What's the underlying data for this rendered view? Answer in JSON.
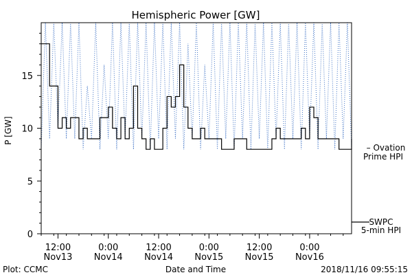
{
  "chart_data": {
    "type": "line",
    "title": "Hemispheric Power [GW]",
    "ylabel": "P [GW]",
    "xlabel": "Date and Time",
    "ylim": [
      0,
      20
    ],
    "yticks": [
      0,
      5,
      10,
      15
    ],
    "xticks": [
      {
        "time": "2018-11-13 12:00",
        "label1": "12:00",
        "label2": "Nov13"
      },
      {
        "time": "2018-11-14 00:00",
        "label1": "0:00",
        "label2": "Nov14"
      },
      {
        "time": "2018-11-14 12:00",
        "label1": "12:00",
        "label2": "Nov14"
      },
      {
        "time": "2018-11-15 00:00",
        "label1": "0:00",
        "label2": "Nov15"
      },
      {
        "time": "2018-11-15 12:00",
        "label1": "12:00",
        "label2": "Nov15"
      },
      {
        "time": "2018-11-16 00:00",
        "label1": "0:00",
        "label2": "Nov16"
      }
    ],
    "xlim": [
      "2018-11-13 08:00",
      "2018-11-16 10:00"
    ],
    "footer_left": "Plot: CCMC",
    "footer_right": "2018/11/16 09:55:15",
    "colors": {
      "swpc": "#000000",
      "ovation": "#3a6fc4"
    },
    "series": [
      {
        "name": "SWPC 5-min HPI",
        "legend_line1": "SWPC",
        "legend_line2": "5-min HPI",
        "style": "solid",
        "x": [
          "2018-11-13 08:00",
          "2018-11-13 10:00",
          "2018-11-13 12:00",
          "2018-11-13 13:00",
          "2018-11-13 14:00",
          "2018-11-13 15:00",
          "2018-11-13 17:00",
          "2018-11-13 18:00",
          "2018-11-13 19:00",
          "2018-11-13 20:00",
          "2018-11-13 22:00",
          "2018-11-14 00:00",
          "2018-11-14 01:00",
          "2018-11-14 02:00",
          "2018-11-14 03:00",
          "2018-11-14 04:00",
          "2018-11-14 05:00",
          "2018-11-14 06:00",
          "2018-11-14 07:00",
          "2018-11-14 08:00",
          "2018-11-14 09:00",
          "2018-11-14 10:00",
          "2018-11-14 11:00",
          "2018-11-14 12:00",
          "2018-11-14 13:00",
          "2018-11-14 14:00",
          "2018-11-14 15:00",
          "2018-11-14 16:00",
          "2018-11-14 17:00",
          "2018-11-14 18:00",
          "2018-11-14 19:00",
          "2018-11-14 20:00",
          "2018-11-14 21:00",
          "2018-11-14 22:00",
          "2018-11-14 23:00",
          "2018-11-15 01:00",
          "2018-11-15 03:00",
          "2018-11-15 06:00",
          "2018-11-15 09:00",
          "2018-11-15 12:00",
          "2018-11-15 15:00",
          "2018-11-15 16:00",
          "2018-11-15 17:00",
          "2018-11-15 20:00",
          "2018-11-15 22:00",
          "2018-11-15 23:00",
          "2018-11-16 00:00",
          "2018-11-16 01:00",
          "2018-11-16 02:00",
          "2018-11-16 03:00",
          "2018-11-16 05:00",
          "2018-11-16 07:00",
          "2018-11-16 09:00",
          "2018-11-16 10:00"
        ],
        "y": [
          18,
          14,
          10,
          11,
          10,
          11,
          9,
          10,
          9,
          9,
          11,
          12,
          10,
          9,
          11,
          9,
          10,
          14,
          10,
          9,
          8,
          9,
          8,
          8,
          10,
          13,
          12,
          13,
          16,
          12,
          10,
          9,
          9,
          10,
          9,
          9,
          8,
          9,
          8,
          8,
          9,
          10,
          9,
          9,
          10,
          9,
          12,
          11,
          9,
          9,
          9,
          8,
          8,
          9
        ]
      },
      {
        "name": "Ovation Prime HPI",
        "legend_line1": "– Ovation",
        "legend_line2": "Prime HPI",
        "style": "dotted",
        "x": [
          "2018-11-13 08:00",
          "2018-11-13 09:00",
          "2018-11-13 10:00",
          "2018-11-13 11:00",
          "2018-11-13 12:00",
          "2018-11-13 13:00",
          "2018-11-13 14:00",
          "2018-11-13 15:00",
          "2018-11-13 16:00",
          "2018-11-13 17:00",
          "2018-11-13 18:00",
          "2018-11-13 19:00",
          "2018-11-13 20:00",
          "2018-11-13 21:00",
          "2018-11-13 22:00",
          "2018-11-13 23:00",
          "2018-11-14 00:00",
          "2018-11-14 01:00",
          "2018-11-14 02:00",
          "2018-11-14 03:00",
          "2018-11-14 04:00",
          "2018-11-14 05:00",
          "2018-11-14 06:00",
          "2018-11-14 07:00",
          "2018-11-14 08:00",
          "2018-11-14 09:00",
          "2018-11-14 10:00",
          "2018-11-14 11:00",
          "2018-11-14 12:00",
          "2018-11-14 13:00",
          "2018-11-14 14:00",
          "2018-11-14 15:00",
          "2018-11-14 16:00",
          "2018-11-14 17:00",
          "2018-11-14 18:00",
          "2018-11-14 19:00",
          "2018-11-14 20:00",
          "2018-11-14 21:00",
          "2018-11-14 22:00",
          "2018-11-14 23:00",
          "2018-11-15 00:00",
          "2018-11-15 01:00",
          "2018-11-15 02:00",
          "2018-11-15 03:00",
          "2018-11-15 04:00",
          "2018-11-15 05:00",
          "2018-11-15 06:00",
          "2018-11-15 07:00",
          "2018-11-15 08:00",
          "2018-11-15 09:00",
          "2018-11-15 10:00",
          "2018-11-15 11:00",
          "2018-11-15 12:00",
          "2018-11-15 13:00",
          "2018-11-15 14:00",
          "2018-11-15 15:00",
          "2018-11-15 16:00",
          "2018-11-15 17:00",
          "2018-11-15 18:00",
          "2018-11-15 19:00",
          "2018-11-15 20:00",
          "2018-11-15 21:00",
          "2018-11-15 22:00",
          "2018-11-15 23:00",
          "2018-11-16 00:00",
          "2018-11-16 01:00",
          "2018-11-16 02:00",
          "2018-11-16 03:00",
          "2018-11-16 04:00",
          "2018-11-16 05:00",
          "2018-11-16 06:00",
          "2018-11-16 07:00",
          "2018-11-16 08:00",
          "2018-11-16 09:00",
          "2018-11-16 10:00"
        ],
        "y": [
          8,
          20,
          9,
          20,
          10,
          20,
          9,
          20,
          9,
          20,
          8,
          14,
          9,
          20,
          8,
          16,
          9,
          20,
          8,
          20,
          9,
          20,
          8,
          20,
          9,
          20,
          8,
          20,
          9,
          20,
          8,
          20,
          9,
          20,
          8,
          18,
          9,
          20,
          8,
          16,
          9,
          20,
          8,
          20,
          9,
          20,
          8,
          20,
          9,
          20,
          8,
          20,
          9,
          20,
          8,
          20,
          9,
          20,
          8,
          20,
          9,
          20,
          8,
          20,
          9,
          20,
          8,
          20,
          9,
          20,
          8,
          20,
          9,
          20,
          8
        ]
      }
    ]
  }
}
